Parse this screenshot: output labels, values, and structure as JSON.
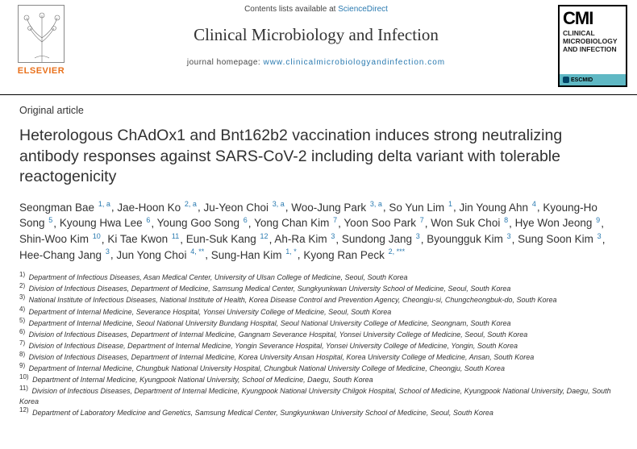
{
  "header": {
    "publisher_label": "ELSEVIER",
    "contents_prefix": "Contents lists available at ",
    "contents_link": "ScienceDirect",
    "journal_name": "Clinical Microbiology and Infection",
    "homepage_prefix": "journal homepage: ",
    "homepage_url": "www.clinicalmicrobiologyandinfection.com",
    "cmi": {
      "abbrev": "CMI",
      "line1": "CLINICAL",
      "line2": "MICROBIOLOGY",
      "line3": "AND INFECTION",
      "society": "ESCMID"
    }
  },
  "article_type": "Original article",
  "title": "Heterologous ChAdOx1 and Bnt162b2 vaccination induces strong neutralizing antibody responses against SARS-CoV-2 including delta variant with tolerable reactogenicity",
  "authors": [
    {
      "name": "Seongman Bae",
      "aff": "1, a"
    },
    {
      "name": "Jae-Hoon Ko",
      "aff": "2, a"
    },
    {
      "name": "Ju-Yeon Choi",
      "aff": "3, a"
    },
    {
      "name": "Woo-Jung Park",
      "aff": "3, a"
    },
    {
      "name": "So Yun Lim",
      "aff": "1"
    },
    {
      "name": "Jin Young Ahn",
      "aff": "4"
    },
    {
      "name": "Kyoung-Ho Song",
      "aff": "5"
    },
    {
      "name": "Kyoung Hwa Lee",
      "aff": "6"
    },
    {
      "name": "Young Goo Song",
      "aff": "6"
    },
    {
      "name": "Yong Chan Kim",
      "aff": "7"
    },
    {
      "name": "Yoon Soo Park",
      "aff": "7"
    },
    {
      "name": "Won Suk Choi",
      "aff": "8"
    },
    {
      "name": "Hye Won Jeong",
      "aff": "9"
    },
    {
      "name": "Shin-Woo Kim",
      "aff": "10"
    },
    {
      "name": "Ki Tae Kwon",
      "aff": "11"
    },
    {
      "name": "Eun-Suk Kang",
      "aff": "12"
    },
    {
      "name": "Ah-Ra Kim",
      "aff": "3"
    },
    {
      "name": "Sundong Jang",
      "aff": "3"
    },
    {
      "name": "Byoungguk Kim",
      "aff": "3"
    },
    {
      "name": "Sung Soon Kim",
      "aff": "3"
    },
    {
      "name": "Hee-Chang Jang",
      "aff": "3"
    },
    {
      "name": "Jun Yong Choi",
      "aff": "4, **"
    },
    {
      "name": "Sung-Han Kim",
      "aff": "1, *"
    },
    {
      "name": "Kyong Ran Peck",
      "aff": "2, ***"
    }
  ],
  "affiliations": [
    {
      "num": "1)",
      "text": "Department of Infectious Diseases, Asan Medical Center, University of Ulsan College of Medicine, Seoul, South Korea"
    },
    {
      "num": "2)",
      "text": "Division of Infectious Diseases, Department of Medicine, Samsung Medical Center, Sungkyunkwan University School of Medicine, Seoul, South Korea"
    },
    {
      "num": "3)",
      "text": "National Institute of Infectious Diseases, National Institute of Health, Korea Disease Control and Prevention Agency, Cheongju-si, Chungcheongbuk-do, South Korea"
    },
    {
      "num": "4)",
      "text": "Department of Internal Medicine, Severance Hospital, Yonsei University College of Medicine, Seoul, South Korea"
    },
    {
      "num": "5)",
      "text": "Department of Internal Medicine, Seoul National University Bundang Hospital, Seoul National University College of Medicine, Seongnam, South Korea"
    },
    {
      "num": "6)",
      "text": "Division of Infectious Diseases, Department of Internal Medicine, Gangnam Severance Hospital, Yonsei University College of Medicine, Seoul, South Korea"
    },
    {
      "num": "7)",
      "text": "Division of Infectious Disease, Department of Internal Medicine, Yongin Severance Hospital, Yonsei University College of Medicine, Yongin, South Korea"
    },
    {
      "num": "8)",
      "text": "Division of Infectious Diseases, Department of Internal Medicine, Korea University Ansan Hospital, Korea University College of Medicine, Ansan, South Korea"
    },
    {
      "num": "9)",
      "text": "Department of Internal Medicine, Chungbuk National University Hospital, Chungbuk National University College of Medicine, Cheongju, South Korea"
    },
    {
      "num": "10)",
      "text": "Department of Internal Medicine, Kyungpook National University, School of Medicine, Daegu, South Korea"
    },
    {
      "num": "11)",
      "text": "Division of Infectious Diseases, Department of Internal Medicine, Kyungpook National University Chilgok Hospital, School of Medicine, Kyungpook National University, Daegu, South Korea"
    },
    {
      "num": "12)",
      "text": "Department of Laboratory Medicine and Genetics, Samsung Medical Center, Sungkyunkwan University School of Medicine, Seoul, South Korea"
    }
  ],
  "colors": {
    "link": "#2a7ab0",
    "publisher": "#e9711c",
    "escmid_bg": "#5fb8c4"
  }
}
